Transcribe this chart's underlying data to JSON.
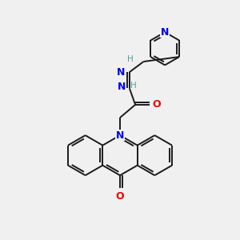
{
  "background_color": "#f0f0f0",
  "bond_color": "#1a1a1a",
  "N_color": "#0000ee",
  "O_color": "#ee0000",
  "H_color": "#5a9a9a",
  "lw": 1.4,
  "figsize": [
    3.0,
    3.0
  ],
  "dpi": 100,
  "xlim": [
    0,
    10
  ],
  "ylim": [
    0,
    10
  ]
}
